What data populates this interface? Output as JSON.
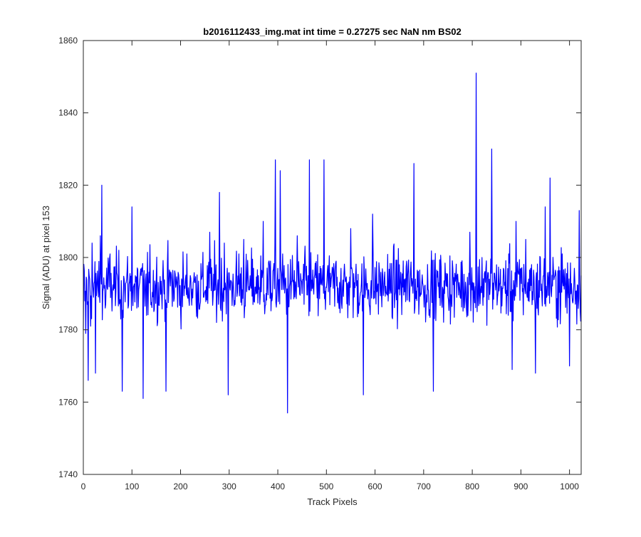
{
  "chart_data": {
    "type": "line",
    "title": "b2016112433_img.mat int time = 0.27275 sec  NaN nm BS02",
    "xlabel": "Track Pixels",
    "ylabel": "Signal (ADU) at pixel 153",
    "xlim": [
      0,
      1024
    ],
    "ylim": [
      1740,
      1860
    ],
    "xticks": [
      0,
      100,
      200,
      300,
      400,
      500,
      600,
      700,
      800,
      900,
      1000
    ],
    "yticks": [
      1740,
      1760,
      1780,
      1800,
      1820,
      1840,
      1860
    ],
    "grid": false,
    "series": [
      {
        "color": "#0000ff",
        "noise": {
          "mean": 1792,
          "min": 1762,
          "max": 1827
        },
        "points": [
          [
            0,
            1780
          ],
          [
            3,
            1788
          ],
          [
            5,
            1779
          ],
          [
            8,
            1787
          ],
          [
            10,
            1766
          ],
          [
            12,
            1795
          ],
          [
            15,
            1781
          ],
          [
            18,
            1804
          ],
          [
            21,
            1789
          ],
          [
            25,
            1768
          ],
          [
            30,
            1792
          ],
          [
            35,
            1806
          ],
          [
            38,
            1820
          ],
          [
            45,
            1786
          ],
          [
            55,
            1801
          ],
          [
            70,
            1795
          ],
          [
            80,
            1763
          ],
          [
            85,
            1791
          ],
          [
            100,
            1814
          ],
          [
            110,
            1786
          ],
          [
            123,
            1761
          ],
          [
            130,
            1784
          ],
          [
            150,
            1794
          ],
          [
            170,
            1763
          ],
          [
            180,
            1796
          ],
          [
            200,
            1786
          ],
          [
            220,
            1795
          ],
          [
            240,
            1787
          ],
          [
            260,
            1807
          ],
          [
            280,
            1818
          ],
          [
            287,
            1790
          ],
          [
            290,
            1804
          ],
          [
            298,
            1762
          ],
          [
            305,
            1793
          ],
          [
            320,
            1801
          ],
          [
            330,
            1805
          ],
          [
            340,
            1791
          ],
          [
            350,
            1797
          ],
          [
            360,
            1795
          ],
          [
            370,
            1810
          ],
          [
            385,
            1799
          ],
          [
            395,
            1827
          ],
          [
            400,
            1797
          ],
          [
            405,
            1824
          ],
          [
            410,
            1801
          ],
          [
            420,
            1757
          ],
          [
            425,
            1793
          ],
          [
            440,
            1806
          ],
          [
            450,
            1790
          ],
          [
            465,
            1827
          ],
          [
            480,
            1793
          ],
          [
            495,
            1827
          ],
          [
            510,
            1794
          ],
          [
            520,
            1799
          ],
          [
            530,
            1797
          ],
          [
            550,
            1808
          ],
          [
            560,
            1795
          ],
          [
            576,
            1762
          ],
          [
            580,
            1790
          ],
          [
            595,
            1812
          ],
          [
            610,
            1793
          ],
          [
            620,
            1796
          ],
          [
            630,
            1790
          ],
          [
            650,
            1798
          ],
          [
            665,
            1799
          ],
          [
            680,
            1826
          ],
          [
            700,
            1790
          ],
          [
            720,
            1763
          ],
          [
            730,
            1792
          ],
          [
            740,
            1791
          ],
          [
            760,
            1797
          ],
          [
            780,
            1795
          ],
          [
            795,
            1807
          ],
          [
            800,
            1791
          ],
          [
            808,
            1851
          ],
          [
            810,
            1785
          ],
          [
            820,
            1800
          ],
          [
            835,
            1794
          ],
          [
            840,
            1830
          ],
          [
            850,
            1798
          ],
          [
            860,
            1792
          ],
          [
            875,
            1801
          ],
          [
            882,
            1769
          ],
          [
            890,
            1810
          ],
          [
            900,
            1797
          ],
          [
            910,
            1805
          ],
          [
            920,
            1797
          ],
          [
            930,
            1768
          ],
          [
            940,
            1800
          ],
          [
            950,
            1814
          ],
          [
            960,
            1822
          ],
          [
            970,
            1795
          ],
          [
            985,
            1801
          ],
          [
            1000,
            1770
          ],
          [
            1010,
            1797
          ],
          [
            1020,
            1813
          ],
          [
            1024,
            1795
          ]
        ]
      }
    ]
  }
}
